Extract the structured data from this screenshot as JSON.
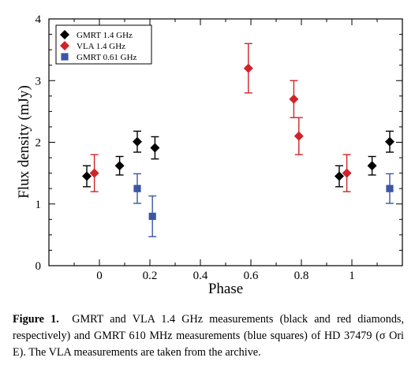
{
  "chart_data": {
    "type": "scatter",
    "xlabel": "Phase",
    "ylabel": "Flux density (mJy)",
    "xlim": [
      -0.2,
      1.2
    ],
    "ylim": [
      0,
      4
    ],
    "xticks": [
      0,
      0.2,
      0.4,
      0.6,
      0.8,
      1
    ],
    "xtick_labels": [
      "0",
      "0.2",
      "0.4",
      "0.6",
      "0.8",
      "1"
    ],
    "yticks": [
      0,
      1,
      2,
      3,
      4
    ],
    "ytick_labels": [
      "0",
      "1",
      "2",
      "3",
      "4"
    ],
    "legend_position": "top-left",
    "series": [
      {
        "name": "GMRT 1.4 GHz",
        "marker": "diamond",
        "color": "#000000",
        "points": [
          {
            "x": -0.05,
            "y": 1.45,
            "err": 0.17
          },
          {
            "x": 0.08,
            "y": 1.62,
            "err": 0.15
          },
          {
            "x": 0.15,
            "y": 2.01,
            "err": 0.17
          },
          {
            "x": 0.22,
            "y": 1.91,
            "err": 0.18
          },
          {
            "x": 0.95,
            "y": 1.45,
            "err": 0.17
          },
          {
            "x": 1.08,
            "y": 1.62,
            "err": 0.15
          },
          {
            "x": 1.15,
            "y": 2.01,
            "err": 0.17
          }
        ]
      },
      {
        "name": "VLA 1.4 GHz",
        "marker": "diamond",
        "color": "#d0232a",
        "points": [
          {
            "x": -0.02,
            "y": 1.5,
            "err": 0.3
          },
          {
            "x": 0.59,
            "y": 3.2,
            "err": 0.4
          },
          {
            "x": 0.77,
            "y": 2.7,
            "err": 0.3
          },
          {
            "x": 0.79,
            "y": 2.1,
            "err": 0.3
          },
          {
            "x": 0.98,
            "y": 1.5,
            "err": 0.3
          }
        ]
      },
      {
        "name": "GMRT 0.61 GHz",
        "marker": "square",
        "color": "#3a56a5",
        "points": [
          {
            "x": 0.15,
            "y": 1.25,
            "err": 0.24
          },
          {
            "x": 0.21,
            "y": 0.8,
            "err": 0.33
          },
          {
            "x": 1.15,
            "y": 1.25,
            "err": 0.24
          }
        ]
      }
    ]
  },
  "caption": {
    "label": "Figure 1.",
    "text": "GMRT and VLA 1.4 GHz measurements (black and red diamonds, respectively) and GMRT 610 MHz measurements (blue squares) of HD 37479 (σ Ori E). The VLA measurements are taken from the archive."
  }
}
